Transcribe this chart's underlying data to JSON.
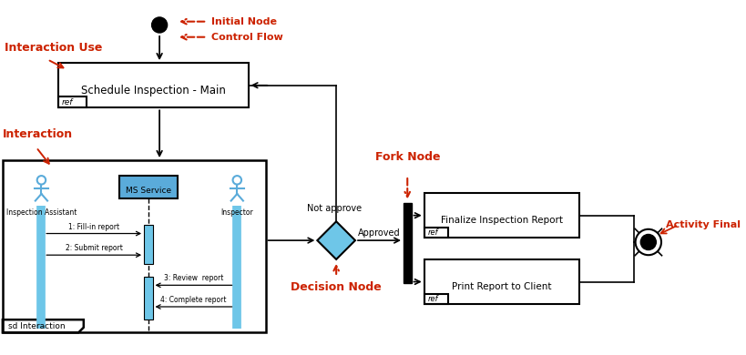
{
  "bg_color": "#ffffff",
  "label_color": "#cc2200",
  "box_edge_color": "#000000",
  "lifeline_color": "#6ec6e8",
  "actor_color": "#5aabda",
  "ms_service_color": "#5aabda",
  "fork_node_label": "Fork Node",
  "decision_node_label": "Decision Node",
  "activity_final_label": "Activity Final",
  "interaction_use_label": "Interaction Use",
  "control_flow_label": "Control Flow",
  "initial_node_label": "Initial Node",
  "interaction_label": "Interaction",
  "ref_box1_label": "Schedule Inspection - Main",
  "ref_box2_label": "Finalize Inspection Report",
  "ref_box3_label": "Print Report to Client",
  "sd_label": "sd Interaction",
  "approved_label": "Approved",
  "not_approve_label": "Not approve",
  "msg1": "1: Fill-in report",
  "msg2": "2: Submit report",
  "msg3": "3: Review  report",
  "msg4": "4: Complete report",
  "actor1_label": "Inspection Assistant",
  "actor2_label": "Inspector",
  "ms_label": "MS Service",
  "figw": 8.19,
  "figh": 3.9,
  "dpi": 100
}
